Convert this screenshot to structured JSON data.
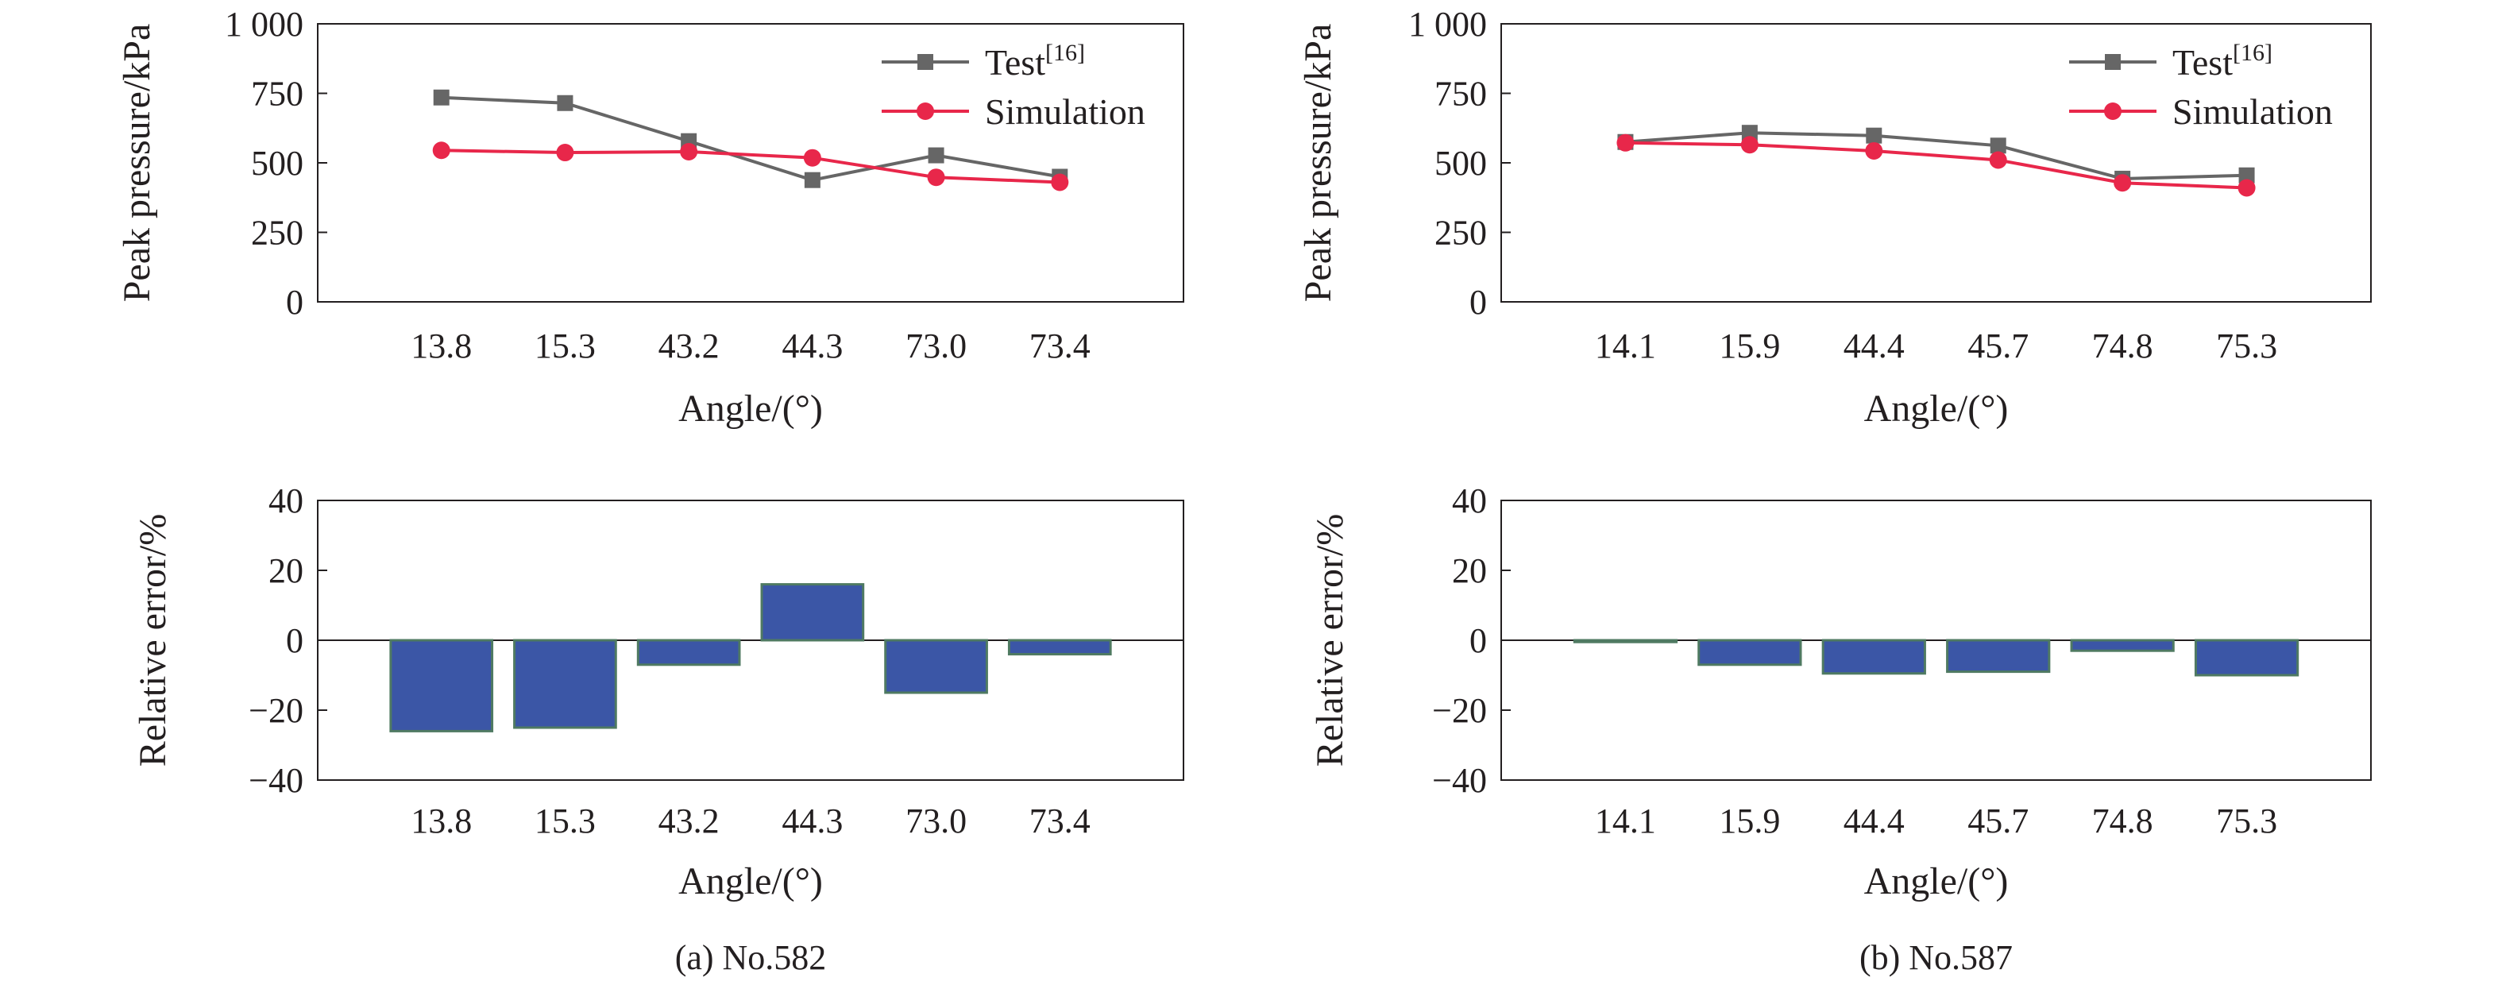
{
  "colors": {
    "test": "#666666",
    "simulation": "#e8274a",
    "bar_fill": "#3b56a6",
    "bar_stroke": "#4f7a62",
    "axis": "#231f20"
  },
  "chart_data": [
    {
      "id": "a-top",
      "type": "line",
      "categories": [
        "13.8",
        "15.3",
        "43.2",
        "44.3",
        "73.0",
        "73.4"
      ],
      "series": [
        {
          "name": "Test",
          "name_ref": "[16]",
          "marker": "square",
          "values": [
            735,
            715,
            578,
            438,
            527,
            450
          ]
        },
        {
          "name": "Simulation",
          "marker": "circle",
          "values": [
            545,
            537,
            540,
            518,
            448,
            430
          ]
        }
      ],
      "xlabel": "Angle/(°)",
      "ylabel": "Peak pressure/kPa",
      "ylim": [
        0,
        1000
      ],
      "yticks": [
        0,
        250,
        500,
        750,
        1000
      ],
      "ytick_labels": [
        "0",
        "250",
        "500",
        "750",
        "1 000"
      ],
      "legend": "top-right",
      "grid": false
    },
    {
      "id": "a-bottom",
      "type": "bar",
      "categories": [
        "13.8",
        "15.3",
        "43.2",
        "44.3",
        "73.0",
        "73.4"
      ],
      "values": [
        -26,
        -25,
        -7,
        16,
        -15,
        -4
      ],
      "xlabel": "Angle/(°)",
      "ylabel": "Relative error/%",
      "ylim": [
        -40,
        40
      ],
      "yticks": [
        -40,
        -20,
        0,
        20,
        40
      ],
      "ytick_labels": [
        "−40",
        "−20",
        "0",
        "20",
        "40"
      ],
      "grid": false,
      "caption": "(a) No.582"
    },
    {
      "id": "b-top",
      "type": "line",
      "categories": [
        "14.1",
        "15.9",
        "44.4",
        "45.7",
        "74.8",
        "75.3"
      ],
      "series": [
        {
          "name": "Test",
          "name_ref": "[16]",
          "marker": "square",
          "values": [
            575,
            608,
            598,
            562,
            443,
            455
          ]
        },
        {
          "name": "Simulation",
          "marker": "circle",
          "values": [
            572,
            565,
            543,
            510,
            428,
            410
          ]
        }
      ],
      "xlabel": "Angle/(°)",
      "ylabel": "Peak pressure/kPa",
      "ylim": [
        0,
        1000
      ],
      "yticks": [
        0,
        250,
        500,
        750,
        1000
      ],
      "ytick_labels": [
        "0",
        "250",
        "500",
        "750",
        "1 000"
      ],
      "legend": "top-right",
      "grid": false
    },
    {
      "id": "b-bottom",
      "type": "bar",
      "categories": [
        "14.1",
        "15.9",
        "44.4",
        "45.7",
        "74.8",
        "75.3"
      ],
      "values": [
        -0.5,
        -7,
        -9.5,
        -9,
        -3,
        -10
      ],
      "xlabel": "Angle/(°)",
      "ylabel": "Relative error/%",
      "ylim": [
        -40,
        40
      ],
      "yticks": [
        -40,
        -20,
        0,
        20,
        40
      ],
      "ytick_labels": [
        "−40",
        "−20",
        "0",
        "20",
        "40"
      ],
      "grid": false,
      "caption": "(b) No.587"
    }
  ]
}
